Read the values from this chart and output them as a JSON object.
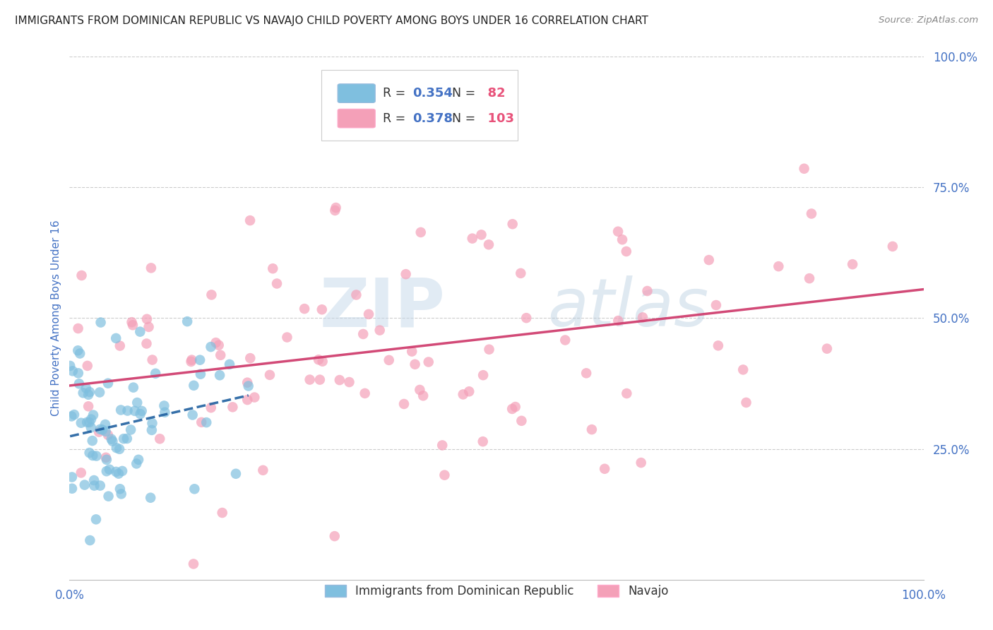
{
  "title": "IMMIGRANTS FROM DOMINICAN REPUBLIC VS NAVAJO CHILD POVERTY AMONG BOYS UNDER 16 CORRELATION CHART",
  "source": "Source: ZipAtlas.com",
  "ylabel": "Child Poverty Among Boys Under 16",
  "xlim": [
    0.0,
    1.0
  ],
  "ylim": [
    0.0,
    1.0
  ],
  "xtick_labels": [
    "0.0%",
    "100.0%"
  ],
  "xtick_positions": [
    0.0,
    1.0
  ],
  "ytick_labels": [
    "100.0%",
    "75.0%",
    "50.0%",
    "25.0%"
  ],
  "ytick_positions": [
    1.0,
    0.75,
    0.5,
    0.25
  ],
  "blue_R": 0.354,
  "blue_N": 82,
  "pink_R": 0.378,
  "pink_N": 103,
  "blue_color": "#7fbfdf",
  "pink_color": "#f4a0b8",
  "blue_line_color": "#2060a0",
  "pink_line_color": "#d04070",
  "blue_label": "Immigrants from Dominican Republic",
  "pink_label": "Navajo",
  "background_color": "#ffffff",
  "grid_color": "#cccccc",
  "title_color": "#222222",
  "tick_label_color": "#4472c4",
  "legend_R_N_color": "#4472c4",
  "legend_pink_N_color": "#e8527a",
  "seed_blue": 77,
  "seed_pink": 55
}
